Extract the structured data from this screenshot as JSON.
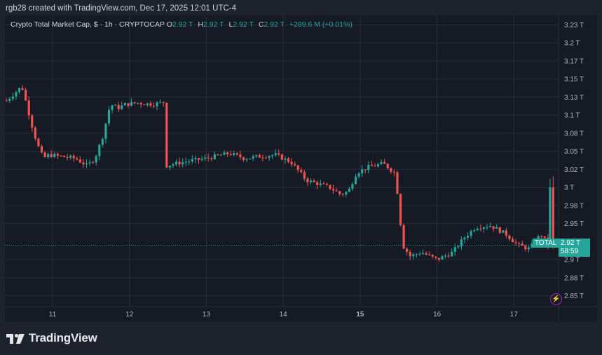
{
  "header": {
    "text": "rgb28 created with TradingView.com, Dec 17, 2025 12:01 UTC-4"
  },
  "legend": {
    "symbol": "Crypto Total Market Cap, $ · 1h · CRYPTOCAP",
    "open_label": "O",
    "open": "2.92 T",
    "high_label": "H",
    "high": "2.92 T",
    "low_label": "L",
    "low": "2.92 T",
    "close_label": "C",
    "close": "2.92 T",
    "change": "+289.6 M (+0.01%)"
  },
  "price_tag": {
    "name": "TOTAL",
    "value": "2.92 T",
    "countdown": "58:59"
  },
  "footer": {
    "brand": "TradingView"
  },
  "colors": {
    "up": "#26a69a",
    "down": "#ef5350",
    "background": "#161a25",
    "grid": "#2a2e39"
  },
  "chart_data": {
    "type": "candlestick",
    "title": "Crypto Total Market Cap",
    "x_ticks": [
      {
        "label": "11",
        "day": 11
      },
      {
        "label": "12",
        "day": 12
      },
      {
        "label": "13",
        "day": 13
      },
      {
        "label": "14",
        "day": 14
      },
      {
        "label": "15",
        "day": 15
      },
      {
        "label": "16",
        "day": 16
      },
      {
        "label": "17",
        "day": 17
      }
    ],
    "x_range_days": [
      10.38,
      17.58
    ],
    "y_ticks": [
      "3.23 T",
      "3.2 T",
      "3.17 T",
      "3.15 T",
      "3.13 T",
      "3.1 T",
      "3.08 T",
      "3.05 T",
      "3.02 T",
      "3 T",
      "2.98 T",
      "2.95 T",
      "2.9 T",
      "2.88 T",
      "2.85 T"
    ],
    "y_tick_values": [
      3.225,
      3.2,
      3.175,
      3.15,
      3.125,
      3.1,
      3.075,
      3.05,
      3.025,
      3.0,
      2.975,
      2.95,
      2.9,
      2.875,
      2.85
    ],
    "y_range": [
      2.835,
      3.238
    ],
    "unit": "T USD",
    "close_path": [
      [
        10.4,
        3.12
      ],
      [
        10.5,
        3.13
      ],
      [
        10.6,
        3.14
      ],
      [
        10.65,
        3.12
      ],
      [
        10.72,
        3.09
      ],
      [
        10.8,
        3.06
      ],
      [
        10.88,
        3.04
      ],
      [
        10.95,
        3.045
      ],
      [
        11.1,
        3.043
      ],
      [
        11.3,
        3.04
      ],
      [
        11.45,
        3.03
      ],
      [
        11.55,
        3.04
      ],
      [
        11.65,
        3.07
      ],
      [
        11.75,
        3.115
      ],
      [
        11.85,
        3.11
      ],
      [
        11.95,
        3.115
      ],
      [
        12.1,
        3.117
      ],
      [
        12.3,
        3.115
      ],
      [
        12.45,
        3.118
      ],
      [
        12.48,
        3.03
      ],
      [
        12.6,
        3.033
      ],
      [
        12.8,
        3.037
      ],
      [
        13.0,
        3.04
      ],
      [
        13.2,
        3.045
      ],
      [
        13.3,
        3.047
      ],
      [
        13.5,
        3.04
      ],
      [
        13.7,
        3.043
      ],
      [
        13.9,
        3.045
      ],
      [
        14.1,
        3.035
      ],
      [
        14.3,
        3.01
      ],
      [
        14.45,
        3.005
      ],
      [
        14.6,
        3.0
      ],
      [
        14.75,
        2.99
      ],
      [
        14.85,
        2.995
      ],
      [
        14.95,
        3.02
      ],
      [
        15.1,
        3.028
      ],
      [
        15.3,
        3.033
      ],
      [
        15.45,
        3.02
      ],
      [
        15.5,
        2.98
      ],
      [
        15.55,
        2.92
      ],
      [
        15.65,
        2.905
      ],
      [
        15.8,
        2.91
      ],
      [
        16.0,
        2.9
      ],
      [
        16.2,
        2.91
      ],
      [
        16.35,
        2.93
      ],
      [
        16.5,
        2.945
      ],
      [
        16.7,
        2.947
      ],
      [
        16.9,
        2.935
      ],
      [
        17.05,
        2.92
      ],
      [
        17.2,
        2.915
      ],
      [
        17.35,
        2.935
      ],
      [
        17.45,
        2.92
      ]
    ]
  }
}
